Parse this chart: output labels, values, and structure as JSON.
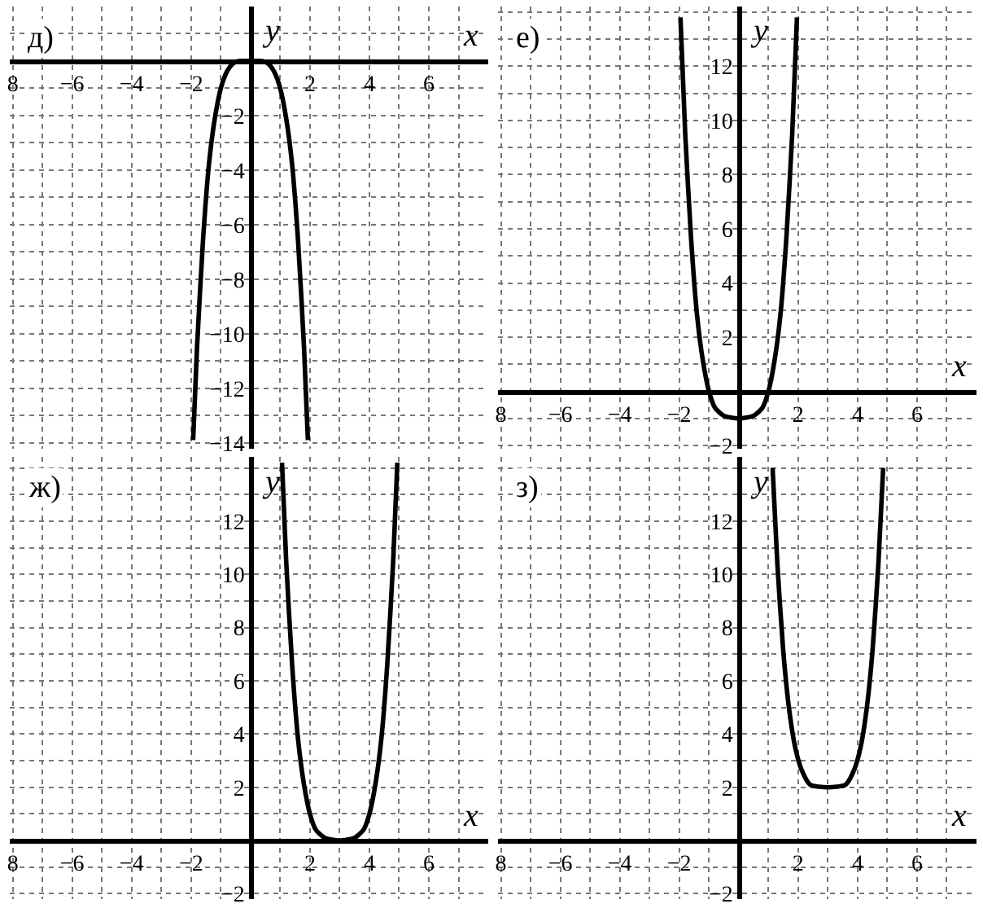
{
  "chart_data": [
    {
      "type": "line",
      "title": "д)",
      "xlabel": "x",
      "ylabel": "y",
      "color": "#000000",
      "grid": true,
      "xlim": [
        -8.1,
        8.0
      ],
      "ylim": [
        -14.2,
        2.0
      ],
      "xticks": [
        {
          "value": -8,
          "label": "8"
        },
        {
          "value": -6,
          "label": "−6"
        },
        {
          "value": -4,
          "label": "−4"
        },
        {
          "value": -2,
          "label": "−2"
        },
        2,
        4,
        6
      ],
      "yticks": [
        {
          "value": -2,
          "label": "−2"
        },
        {
          "value": -4,
          "label": "−4"
        },
        {
          "value": -6,
          "label": "−6"
        },
        {
          "value": -8,
          "label": "−8"
        },
        {
          "value": -10,
          "label": "−10"
        },
        {
          "value": -12,
          "label": "−12"
        },
        {
          "value": -14,
          "label": "−14"
        }
      ],
      "x": [
        -1.93,
        -1.8,
        -1.6,
        -1.4,
        -1.2,
        -1.0,
        -0.8,
        -0.6,
        -0.4,
        0,
        0.4,
        0.6,
        0.8,
        1.0,
        1.2,
        1.4,
        1.6,
        1.8,
        1.93
      ],
      "values": [
        -13.9,
        -10.5,
        -6.6,
        -3.8,
        -2.1,
        -1.0,
        -0.4,
        -0.1,
        0,
        0,
        0,
        -0.1,
        -0.4,
        -1.0,
        -2.1,
        -3.8,
        -6.6,
        -10.5,
        -13.9
      ]
    },
    {
      "type": "line",
      "title": "е)",
      "xlabel": "x",
      "ylabel": "y",
      "color": "#000000",
      "grid": true,
      "xlim": [
        -8.1,
        8.0
      ],
      "ylim": [
        -2.1,
        14.2
      ],
      "xticks": [
        {
          "value": -8,
          "label": "8"
        },
        {
          "value": -6,
          "label": "−6"
        },
        {
          "value": -4,
          "label": "−4"
        },
        {
          "value": -2,
          "label": "−2"
        },
        2,
        4,
        6
      ],
      "yticks": [
        {
          "value": -2,
          "label": "−2"
        },
        2,
        4,
        6,
        8,
        10,
        12
      ],
      "x": [
        -1.96,
        -1.8,
        -1.6,
        -1.4,
        -1.2,
        -1.0,
        -0.8,
        -0.5,
        0,
        0.5,
        0.8,
        1.0,
        1.2,
        1.4,
        1.6,
        1.8,
        1.96
      ],
      "values": [
        13.8,
        9.5,
        5.6,
        2.8,
        1.1,
        0,
        -0.6,
        -0.9,
        -1.0,
        -0.9,
        -0.6,
        0,
        1.1,
        2.8,
        5.6,
        9.5,
        13.8
      ]
    },
    {
      "type": "line",
      "title": "ж)",
      "xlabel": "x",
      "ylabel": "y",
      "color": "#000000",
      "grid": true,
      "xlim": [
        -8.1,
        8.0
      ],
      "ylim": [
        -2.2,
        14.4
      ],
      "xticks": [
        {
          "value": -8,
          "label": "8"
        },
        {
          "value": -6,
          "label": "−6"
        },
        {
          "value": -4,
          "label": "−4"
        },
        {
          "value": -2,
          "label": "−2"
        },
        2,
        4,
        6
      ],
      "yticks": [
        {
          "value": -2,
          "label": "−2"
        },
        2,
        4,
        6,
        8,
        10,
        12
      ],
      "x": [
        1.06,
        1.2,
        1.4,
        1.6,
        1.8,
        2.0,
        2.2,
        2.5,
        3.0,
        3.5,
        3.8,
        4.0,
        4.2,
        4.4,
        4.6,
        4.8,
        4.94
      ],
      "values": [
        14.2,
        10.5,
        6.6,
        3.8,
        2.1,
        1.0,
        0.4,
        0.1,
        0,
        0.1,
        0.4,
        1.0,
        2.1,
        3.8,
        6.6,
        10.5,
        14.2
      ]
    },
    {
      "type": "line",
      "title": "з)",
      "xlabel": "x",
      "ylabel": "y",
      "color": "#000000",
      "grid": true,
      "xlim": [
        -8.1,
        8.0
      ],
      "ylim": [
        -2.2,
        14.4
      ],
      "xticks": [
        {
          "value": -8,
          "label": "8"
        },
        {
          "value": -6,
          "label": "−6"
        },
        {
          "value": -4,
          "label": "−4"
        },
        {
          "value": -2,
          "label": "−2"
        },
        2,
        4,
        6
      ],
      "yticks": [
        {
          "value": -2,
          "label": "−2"
        },
        2,
        4,
        6,
        8,
        10,
        12
      ],
      "x": [
        1.14,
        1.3,
        1.5,
        1.7,
        1.9,
        2.1,
        2.4,
        3.0,
        3.6,
        3.9,
        4.1,
        4.3,
        4.5,
        4.7,
        4.86
      ],
      "values": [
        14.0,
        10.4,
        7.1,
        4.9,
        3.5,
        2.7,
        2.1,
        2.0,
        2.1,
        2.7,
        3.5,
        4.9,
        7.1,
        10.4,
        14.0
      ]
    }
  ]
}
